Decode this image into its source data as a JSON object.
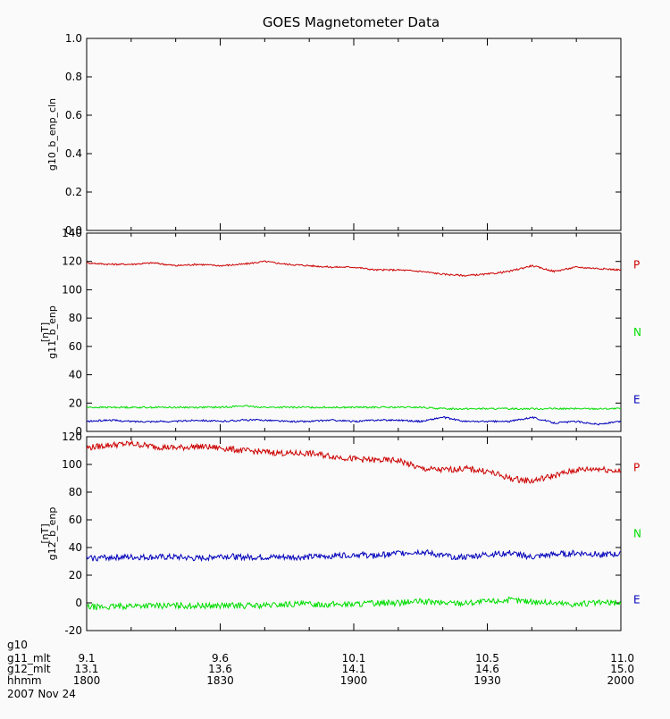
{
  "title": "GOES Magnetometer Data",
  "date_label": "2007 Nov 24",
  "colors": {
    "P": "#cc0000",
    "N": "#00dd00",
    "E": "#0000bb",
    "axis": "#000000",
    "background": "#fafafa"
  },
  "bottom_axis": {
    "row_labels": [
      "g10",
      "g11_mlt",
      "g12_mlt",
      "hhmm"
    ],
    "times": [
      "1800",
      "1830",
      "1900",
      "1930",
      "2000"
    ],
    "g11_mlt": [
      "9.1",
      "9.6",
      "10.1",
      "10.5",
      "11.0"
    ],
    "g12_mlt": [
      "13.1",
      "13.6",
      "14.1",
      "14.6",
      "15.0"
    ]
  },
  "chart_data": [
    {
      "type": "line",
      "ylabel": "g10_b_enp_cln",
      "unit": "",
      "ylim": [
        0.0,
        1.0
      ],
      "yticks": [
        "0.0",
        "0.2",
        "0.4",
        "0.6",
        "0.8",
        "1.0"
      ],
      "x_hhmm": [
        1800,
        2000
      ],
      "series": []
    },
    {
      "type": "line",
      "ylabel": "g11_b_enp",
      "unit": "[nT]",
      "ylim": [
        0,
        140
      ],
      "yticks": [
        "0",
        "20",
        "40",
        "60",
        "80",
        "100",
        "120",
        "140"
      ],
      "x_hhmm": [
        1800,
        2000
      ],
      "x_minutes": [
        0,
        5,
        10,
        15,
        20,
        25,
        30,
        35,
        40,
        45,
        50,
        55,
        60,
        65,
        70,
        75,
        80,
        85,
        90,
        95,
        100,
        105,
        110,
        115,
        120
      ],
      "series": [
        {
          "name": "P",
          "values": [
            119,
            118,
            118,
            119,
            117,
            118,
            117,
            118,
            120,
            118,
            117,
            116,
            116,
            114,
            114,
            113,
            111,
            110,
            111,
            113,
            117,
            113,
            116,
            115,
            114
          ]
        },
        {
          "name": "N",
          "values": [
            17,
            17,
            17,
            17,
            17,
            17,
            17,
            18,
            17,
            17,
            17,
            17,
            17,
            17,
            17,
            17,
            16,
            16,
            16,
            16,
            16,
            16,
            16,
            16,
            16
          ]
        },
        {
          "name": "E",
          "values": [
            7,
            8,
            7,
            7,
            7,
            8,
            7,
            8,
            8,
            7,
            7,
            8,
            7,
            8,
            8,
            7,
            10,
            7,
            7,
            7,
            10,
            6,
            7,
            5,
            7
          ]
        }
      ]
    },
    {
      "type": "line",
      "ylabel": "g12_b_enp",
      "unit": "[nT]",
      "ylim": [
        -20,
        120
      ],
      "yticks": [
        "-20",
        "0",
        "20",
        "40",
        "60",
        "80",
        "100",
        "120"
      ],
      "x_hhmm": [
        1800,
        2000
      ],
      "x_minutes": [
        0,
        5,
        10,
        15,
        20,
        25,
        30,
        35,
        40,
        45,
        50,
        55,
        60,
        65,
        70,
        75,
        80,
        85,
        90,
        95,
        100,
        105,
        110,
        115,
        120
      ],
      "series": [
        {
          "name": "P",
          "values": [
            112,
            114,
            115,
            113,
            112,
            113,
            112,
            110,
            109,
            108,
            108,
            106,
            104,
            103,
            103,
            97,
            96,
            97,
            95,
            90,
            88,
            92,
            96,
            97,
            95
          ]
        },
        {
          "name": "N",
          "values": [
            -3,
            -3,
            -2,
            -2,
            -2,
            -2,
            -2,
            -2,
            -2,
            -1,
            -1,
            -1,
            -1,
            0,
            0,
            1,
            0,
            0,
            1,
            2,
            1,
            0,
            -1,
            0,
            0
          ]
        },
        {
          "name": "E",
          "values": [
            32,
            33,
            33,
            33,
            33,
            32,
            34,
            33,
            33,
            33,
            33,
            34,
            35,
            34,
            36,
            37,
            34,
            33,
            35,
            36,
            33,
            35,
            36,
            35,
            35
          ]
        }
      ]
    }
  ]
}
